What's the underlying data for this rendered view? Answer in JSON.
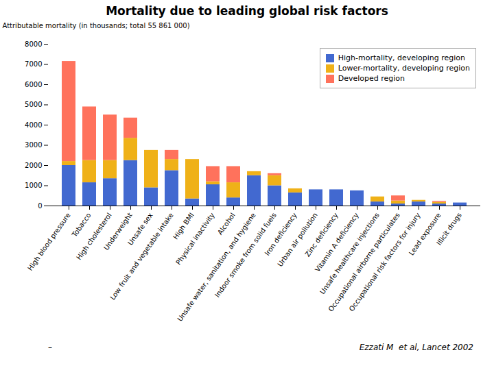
{
  "chart_data": {
    "type": "bar",
    "stacked": true,
    "title": "Mortality due to leading global risk factors",
    "ylabel": "Attributable mortality (in thousands; total 55 861 000)",
    "categories": [
      "High blood pressure",
      "Tobacco",
      "High cholesterol",
      "Underweight",
      "Unsafe sex",
      "Low fruit and vegetable intake",
      "High BMI",
      "Physical inactivity",
      "Alcohol",
      "Unsafe water, sanitation, and hygiene",
      "Indoor smoke from solid fuels",
      "Iron deficiency",
      "Urban air pollution",
      "Zinc deficiency",
      "Vitamin A deficiency",
      "Unsafe healthcare injections",
      "Occupational airborne particulates",
      "Occupational risk factors for injury",
      "Lead exposure",
      "Illicit drugs"
    ],
    "series": [
      {
        "name": "High-mortality, developing region",
        "values": [
          2000,
          1150,
          1350,
          2250,
          900,
          1750,
          350,
          1050,
          400,
          1500,
          1000,
          650,
          800,
          800,
          750,
          200,
          100,
          200,
          100,
          150
        ]
      },
      {
        "name": "Lower-mortality, developing region",
        "values": [
          200,
          1100,
          900,
          1100,
          1850,
          550,
          1950,
          150,
          750,
          200,
          500,
          200,
          0,
          0,
          0,
          250,
          150,
          80,
          80,
          0
        ]
      },
      {
        "name": "Developed region",
        "values": [
          4950,
          2650,
          2250,
          1000,
          0,
          450,
          0,
          750,
          800,
          0,
          100,
          0,
          0,
          0,
          0,
          0,
          250,
          0,
          50,
          0
        ]
      }
    ],
    "ylim": [
      0,
      8000
    ],
    "yticks": [
      0,
      1000,
      2000,
      3000,
      4000,
      5000,
      6000,
      7000,
      8000
    ],
    "grid": false,
    "legend": "upper right",
    "annotations": [
      "Ezzati M  et al, Lancet 2002",
      "–"
    ]
  }
}
